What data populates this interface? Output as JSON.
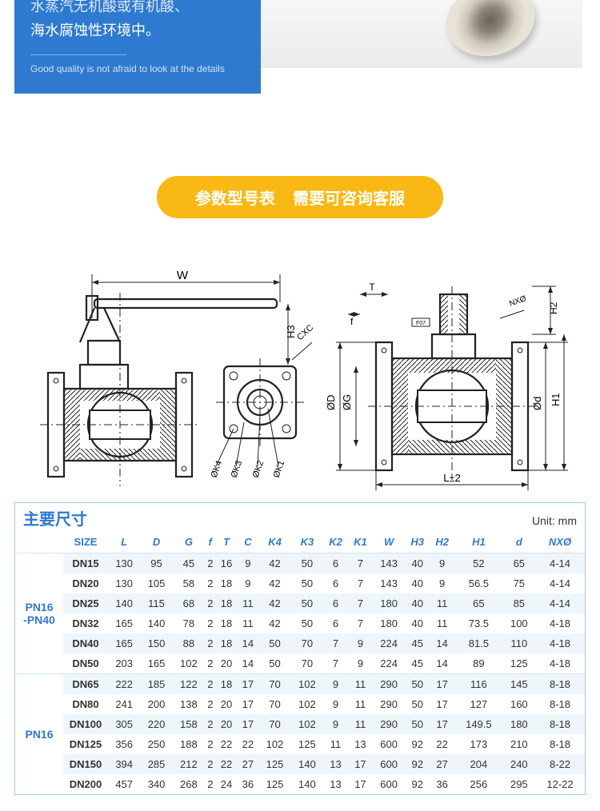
{
  "top_card": {
    "line1": "水蒸汽无机酸或有机酸、",
    "line2": "海水腐蚀性环境中。",
    "tagline": "Good quality is not afraid to look at the details"
  },
  "pill_banner": {
    "left": "参数型号表",
    "right": "需要可咨询客服"
  },
  "diagram_labels": {
    "W": "W",
    "H3": "H3",
    "CXC": "CXC",
    "K4": "ØK4",
    "K3": "ØK3",
    "K2": "ØK2",
    "K1": "ØK1",
    "T": "T",
    "f": "f",
    "H2": "H2",
    "H1": "H1",
    "NXphi": "NXØ",
    "phiD": "ØD",
    "phiG": "ØG",
    "phiD2": "Ød",
    "L": "L±2",
    "F07": "F07"
  },
  "table": {
    "title": "主要尺寸",
    "unit": "Unit: mm",
    "columns": [
      "",
      "SIZE",
      "L",
      "D",
      "G",
      "f",
      "T",
      "C",
      "K4",
      "K3",
      "K2",
      "K1",
      "W",
      "H3",
      "H2",
      "H1",
      "d",
      "NXØ"
    ],
    "groups": [
      {
        "label": "PN16\n-PN40",
        "rows": [
          [
            "DN15",
            "130",
            "95",
            "45",
            "2",
            "16",
            "9",
            "42",
            "50",
            "6",
            "7",
            "143",
            "40",
            "9",
            "52",
            "65",
            "4-14"
          ],
          [
            "DN20",
            "130",
            "105",
            "58",
            "2",
            "18",
            "9",
            "42",
            "50",
            "6",
            "7",
            "143",
            "40",
            "9",
            "56.5",
            "75",
            "4-14"
          ],
          [
            "DN25",
            "140",
            "115",
            "68",
            "2",
            "18",
            "11",
            "42",
            "50",
            "6",
            "7",
            "180",
            "40",
            "11",
            "65",
            "85",
            "4-14"
          ],
          [
            "DN32",
            "165",
            "140",
            "78",
            "2",
            "18",
            "11",
            "42",
            "50",
            "6",
            "7",
            "180",
            "40",
            "11",
            "73.5",
            "100",
            "4-18"
          ],
          [
            "DN40",
            "165",
            "150",
            "88",
            "2",
            "18",
            "14",
            "50",
            "70",
            "7",
            "9",
            "224",
            "45",
            "14",
            "81.5",
            "110",
            "4-18"
          ],
          [
            "DN50",
            "203",
            "165",
            "102",
            "2",
            "20",
            "14",
            "50",
            "70",
            "7",
            "9",
            "224",
            "45",
            "14",
            "89",
            "125",
            "4-18"
          ]
        ]
      },
      {
        "label": "PN16",
        "rows": [
          [
            "DN65",
            "222",
            "185",
            "122",
            "2",
            "18",
            "17",
            "70",
            "102",
            "9",
            "11",
            "290",
            "50",
            "17",
            "116",
            "145",
            "8-18"
          ],
          [
            "DN80",
            "241",
            "200",
            "138",
            "2",
            "20",
            "17",
            "70",
            "102",
            "9",
            "11",
            "290",
            "50",
            "17",
            "127",
            "160",
            "8-18"
          ],
          [
            "DN100",
            "305",
            "220",
            "158",
            "2",
            "20",
            "17",
            "70",
            "102",
            "9",
            "11",
            "290",
            "50",
            "17",
            "149.5",
            "180",
            "8-18"
          ],
          [
            "DN125",
            "356",
            "250",
            "188",
            "2",
            "22",
            "22",
            "102",
            "125",
            "11",
            "13",
            "600",
            "92",
            "22",
            "173",
            "210",
            "8-18"
          ],
          [
            "DN150",
            "394",
            "285",
            "212",
            "2",
            "22",
            "27",
            "125",
            "140",
            "13",
            "17",
            "600",
            "92",
            "27",
            "204",
            "240",
            "8-22"
          ],
          [
            "DN200",
            "457",
            "340",
            "268",
            "2",
            "24",
            "36",
            "125",
            "140",
            "13",
            "17",
            "600",
            "92",
            "36",
            "256",
            "295",
            "12-22"
          ]
        ]
      }
    ]
  },
  "colors": {
    "brand_blue": "#2e7ad1",
    "pill_yellow": "#fab814",
    "table_border": "#9ecbe4",
    "row_stripe": "#eef6fb"
  }
}
